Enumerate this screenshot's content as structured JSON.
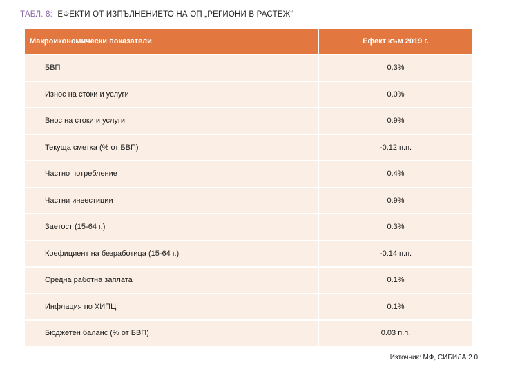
{
  "caption": {
    "label": "ТАБЛ. 8:",
    "title": "ЕФЕКТИ ОТ ИЗПЪЛНЕНИЕТО НА ОП „РЕГИОНИ В РАСТЕЖ“"
  },
  "table": {
    "headers": [
      "Макроикономически показатели",
      "Ефект към 2019 г."
    ],
    "rows": [
      {
        "indicator": "БВП",
        "value": "0.3%"
      },
      {
        "indicator": "Износ на стоки и услуги",
        "value": "0.0%"
      },
      {
        "indicator": "Внос на стоки и услуги",
        "value": "0.9%"
      },
      {
        "indicator": "Текуща сметка (% от БВП)",
        "value": "-0.12 п.п."
      },
      {
        "indicator": "Частно потребление",
        "value": "0.4%"
      },
      {
        "indicator": "Частни инвестиции",
        "value": "0.9%"
      },
      {
        "indicator": "Заетост (15-64 г.)",
        "value": "0.3%"
      },
      {
        "indicator": "Коефициент на безработица (15-64 г.)",
        "value": "-0.14 п.п."
      },
      {
        "indicator": "Средна работна заплата",
        "value": "0.1%"
      },
      {
        "indicator": "Инфлация по ХИПЦ",
        "value": "0.1%"
      },
      {
        "indicator": "Бюджетен баланс (% от БВП)",
        "value": "0.03 п.п."
      }
    ]
  },
  "source": "Източник: МФ, СИБИЛА 2.0",
  "colors": {
    "header_bg": "#e2783f",
    "row_bg": "#fbeee4",
    "caption_label": "#8b6aa8"
  }
}
